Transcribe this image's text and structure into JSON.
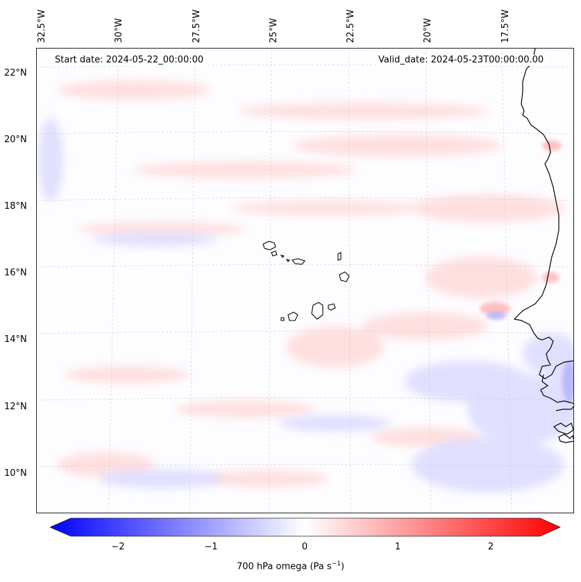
{
  "map": {
    "start_date": "Start date: 2024-05-22_00:00:00",
    "valid_date": "Valid_date: 2024-05-23T00:00:00.00",
    "lon_labels": [
      "32.5°W",
      "30°W",
      "27.5°W",
      "25°W",
      "22.5°W",
      "20°W",
      "17.5°W"
    ],
    "lat_labels": [
      "22°N",
      "20°N",
      "18°N",
      "16°N",
      "14°N",
      "12°N",
      "10°N"
    ],
    "variable": "700 hPa omega",
    "units": "Pa s",
    "units_exponent": "−1"
  },
  "colorbar": {
    "ticks": [
      "−2",
      "−1",
      "0",
      "1",
      "2"
    ],
    "range": [
      -2.75,
      2.75
    ],
    "low_color": "#0000ff",
    "mid_color": "#ffffff",
    "high_color": "#ff0000"
  },
  "colors": {
    "land_outline": "#000000",
    "gridline": "#c8c8d0",
    "sea_bg": "#fdfcff"
  }
}
